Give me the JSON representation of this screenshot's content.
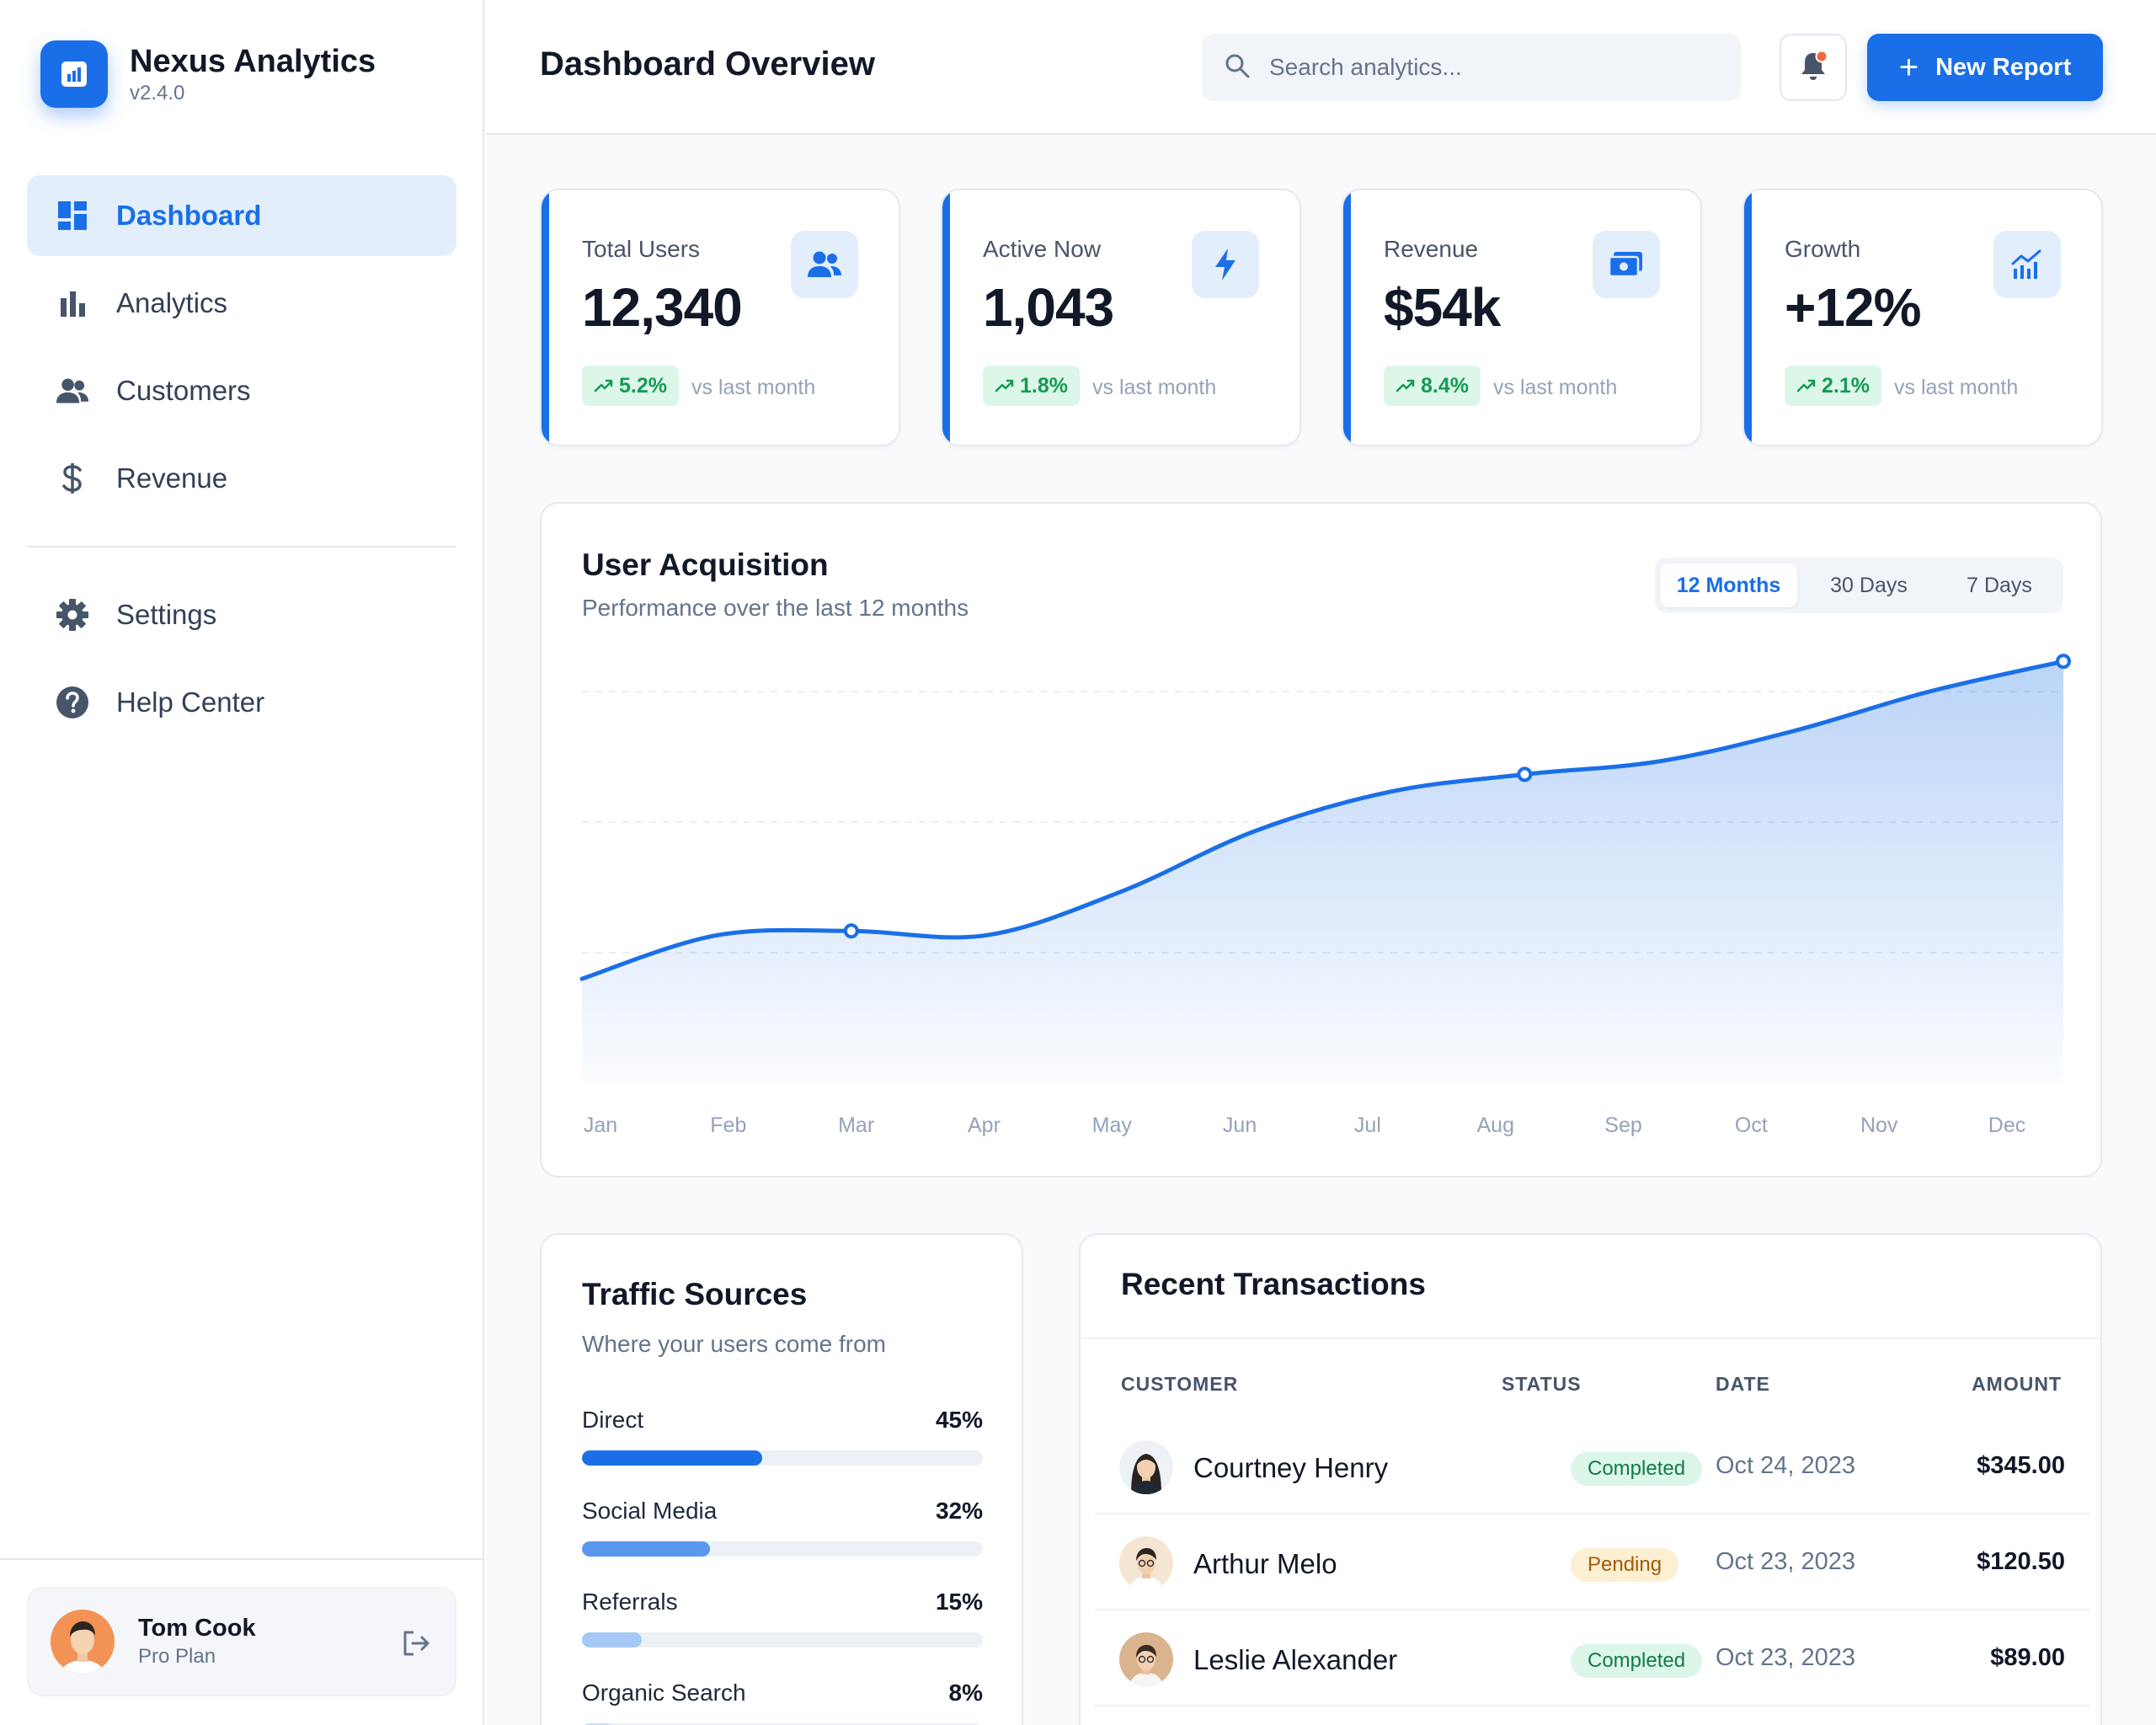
{
  "app": {
    "name": "Nexus Analytics",
    "version": "v2.4.0"
  },
  "sidebar": {
    "items": [
      {
        "label": "Dashboard",
        "icon": "dashboard-icon",
        "active": true
      },
      {
        "label": "Analytics",
        "icon": "bar-chart-icon",
        "active": false
      },
      {
        "label": "Customers",
        "icon": "users-icon",
        "active": false
      },
      {
        "label": "Revenue",
        "icon": "dollar-icon",
        "active": false
      },
      {
        "label": "Settings",
        "icon": "gear-icon",
        "active": false
      },
      {
        "label": "Help Center",
        "icon": "help-icon",
        "active": false
      }
    ]
  },
  "user": {
    "name": "Tom Cook",
    "plan": "Pro Plan"
  },
  "header": {
    "title": "Dashboard Overview",
    "search_placeholder": "Search analytics...",
    "new_report_label": "New Report"
  },
  "stats": [
    {
      "label": "Total Users",
      "value": "12,340",
      "change": "5.2%",
      "vs": "vs last month",
      "icon": "users-icon"
    },
    {
      "label": "Active Now",
      "value": "1,043",
      "change": "1.8%",
      "vs": "vs last month",
      "icon": "bolt-icon"
    },
    {
      "label": "Revenue",
      "value": "$54k",
      "change": "8.4%",
      "vs": "vs last month",
      "icon": "cash-icon"
    },
    {
      "label": "Growth",
      "value": "+12%",
      "change": "2.1%",
      "vs": "vs last month",
      "icon": "growth-chart-icon"
    }
  ],
  "acquisition": {
    "title": "User Acquisition",
    "subtitle": "Performance over the last 12 months",
    "ranges": [
      "12 Months",
      "30 Days",
      "7 Days"
    ],
    "active_range": "12 Months"
  },
  "chart_data": {
    "type": "area",
    "title": "User Acquisition",
    "subtitle": "Performance over the last 12 months",
    "categories": [
      "Jan",
      "Feb",
      "Mar",
      "Apr",
      "May",
      "Jun",
      "Jul",
      "Aug",
      "Sep",
      "Oct",
      "Nov",
      "Dec"
    ],
    "values": [
      24,
      34,
      35,
      34,
      44,
      58,
      67,
      71,
      74,
      81,
      90,
      97
    ],
    "highlighted_points": [
      "Mar",
      "Aug",
      "Dec"
    ],
    "ylim": [
      0,
      110
    ],
    "grid": true,
    "color": "#1a6fe8"
  },
  "traffic": {
    "title": "Traffic Sources",
    "subtitle": "Where your users come from",
    "sources": [
      {
        "name": "Direct",
        "pct": "45%",
        "value": 45,
        "color": "#1a6fe8"
      },
      {
        "name": "Social Media",
        "pct": "32%",
        "value": 32,
        "color": "#5a97ef"
      },
      {
        "name": "Referrals",
        "pct": "15%",
        "value": 15,
        "color": "#a6c8f6"
      },
      {
        "name": "Organic Search",
        "pct": "8%",
        "value": 8,
        "color": "#c9ddf8"
      }
    ]
  },
  "transactions": {
    "title": "Recent Transactions",
    "columns": [
      "CUSTOMER",
      "STATUS",
      "DATE",
      "AMOUNT"
    ],
    "rows": [
      {
        "customer": "Courtney Henry",
        "status": "Completed",
        "date": "Oct 24, 2023",
        "amount": "$345.00"
      },
      {
        "customer": "Arthur Melo",
        "status": "Pending",
        "date": "Oct 23, 2023",
        "amount": "$120.50"
      },
      {
        "customer": "Leslie Alexander",
        "status": "Completed",
        "date": "Oct 23, 2023",
        "amount": "$89.00"
      }
    ]
  }
}
